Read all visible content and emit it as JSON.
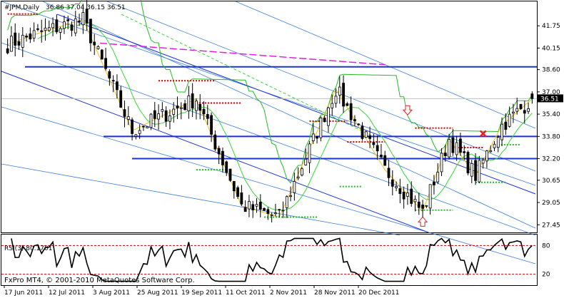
{
  "header": {
    "symbol_label": "#JPM,Daily",
    "ohlc_label": "36.86 37.04 36.15 36.51"
  },
  "watermark": "FxPro MT4, © 2001-2010 MetaQuotes Software Corp.",
  "colors": {
    "frame": "#000000",
    "candle_up": "#ffffff",
    "candle_down": "#000000",
    "price_line_color": "#c0c0c0",
    "blue_lines": "#1a33d6",
    "light_blue_channel": "#3d7fdc",
    "ma_green": "#3ad33a",
    "envelope_green": "#22bb22",
    "magenta_dash": "#e020e0",
    "stop_red": "#cc0000",
    "yellow_line": "#f0c020",
    "arrow_red": "#e02020"
  },
  "chart_data": [
    {
      "type": "candlestick",
      "title": "#JPM,Daily",
      "y_axis_ticks": [
        "41.75",
        "40.15",
        "38.60",
        "37.00",
        "35.40",
        "33.80",
        "32.20",
        "30.65",
        "29.05",
        "27.45"
      ],
      "ylim": [
        26.9,
        43.5
      ],
      "current_price": 36.51,
      "current_price_label": "36.51",
      "last_ohlc": {
        "open": 36.86,
        "high": 37.04,
        "low": 36.15,
        "close": 36.51
      },
      "x_axis_labels": [
        "17 Jun 2011",
        "12 Jul 2011",
        "3 Aug 2011",
        "25 Aug 2011",
        "19 Sep 2011",
        "11 Oct 2011",
        "2 Nov 2011",
        "28 Nov 2011",
        "20 Dec 2011"
      ],
      "bar_count": 140,
      "horizontal_levels": [
        38.8,
        33.8,
        32.2
      ],
      "key_points": [
        {
          "bar": 0,
          "price": 40.4
        },
        {
          "bar": 8,
          "price": 41.2
        },
        {
          "bar": 20,
          "price": 42.2
        },
        {
          "bar": 33,
          "price": 34.2
        },
        {
          "bar": 50,
          "price": 36.5
        },
        {
          "bar": 62,
          "price": 28.8
        },
        {
          "bar": 72,
          "price": 28.0
        },
        {
          "bar": 87,
          "price": 37.2
        },
        {
          "bar": 100,
          "price": 31.4
        },
        {
          "bar": 110,
          "price": 28.4
        },
        {
          "bar": 117,
          "price": 33.6
        },
        {
          "bar": 124,
          "price": 31.0
        },
        {
          "bar": 131,
          "price": 34.6
        },
        {
          "bar": 139,
          "price": 36.5
        }
      ]
    },
    {
      "type": "line",
      "title": "RSI(3) 80.1701",
      "y_axis_ticks": [
        "80",
        "20"
      ],
      "ylim": [
        0,
        100
      ],
      "levels": [
        80,
        20
      ],
      "last_value": 80.1701
    }
  ]
}
